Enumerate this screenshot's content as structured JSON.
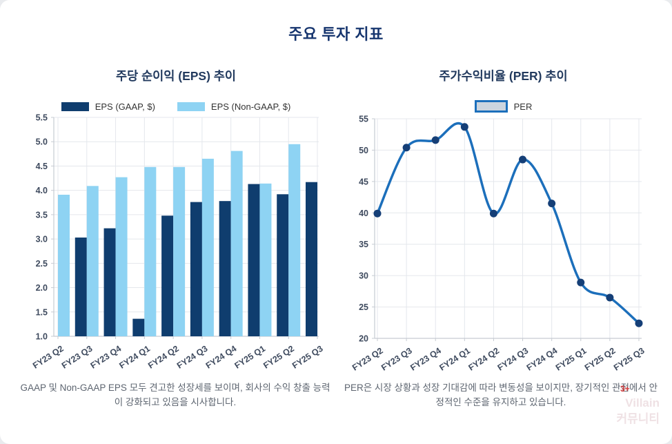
{
  "page": {
    "title": "주요 투자 지표"
  },
  "style": {
    "page_bg": "#e9ebee",
    "card_bg": "#ffffff",
    "title_color": "#16356e",
    "chart_title_color": "#223a5e",
    "tick_label_color": "#3e4a5e",
    "grid_color": "#e4e7ec",
    "axis_color": "#c6cbd2",
    "caption_color": "#5d6570"
  },
  "watermark": {
    "line1": "Villain",
    "line2": "커뮤니티",
    "badge": "3+"
  },
  "chart_data": [
    {
      "type": "bar",
      "title": "주당 순이익 (EPS) 추이",
      "xlabel": "",
      "ylabel": "",
      "categories": [
        "FY23 Q2",
        "FY23 Q3",
        "FY23 Q4",
        "FY24 Q1",
        "FY24 Q2",
        "FY24 Q3",
        "FY24 Q4",
        "FY25 Q1",
        "FY25 Q2",
        "FY25 Q3"
      ],
      "series": [
        {
          "name": "EPS (GAAP, $)",
          "color": "#0f3d6e",
          "values": [
            null,
            3.03,
            3.22,
            1.36,
            3.48,
            3.76,
            3.78,
            4.13,
            3.92,
            4.17
          ]
        },
        {
          "name": "EPS (Non-GAAP, $)",
          "color": "#8ed3f3",
          "values": [
            3.91,
            4.09,
            4.27,
            4.48,
            4.48,
            4.65,
            4.81,
            4.14,
            4.95,
            null
          ]
        }
      ],
      "ylim": [
        1.0,
        5.5
      ],
      "ytick_step": 0.5,
      "ytick_decimals": 1,
      "grid": true,
      "legend_position": "top",
      "caption": "GAAP 및 Non-GAAP EPS 모두 견고한 성장세를 보이며, 회사의 수익 창출 능력이 강화되고 있음을 시사합니다."
    },
    {
      "type": "line",
      "title": "주가수익비율 (PER) 추이",
      "xlabel": "",
      "ylabel": "",
      "categories": [
        "FY23 Q2",
        "FY23 Q3",
        "FY23 Q4",
        "FY24 Q1",
        "FY24 Q2",
        "FY24 Q3",
        "FY24 Q4",
        "FY25 Q1",
        "FY25 Q2",
        "FY25 Q3"
      ],
      "series": [
        {
          "name": "PER",
          "color": "#1c6fbb",
          "marker_color": "#153f77",
          "legend_fill": "#ccd5df",
          "values": [
            39.9,
            50.4,
            51.6,
            53.7,
            39.9,
            48.5,
            41.5,
            28.9,
            26.5,
            22.4
          ]
        }
      ],
      "ylim": [
        20,
        55
      ],
      "ytick_step": 5,
      "ytick_decimals": 0,
      "grid": true,
      "legend_position": "top",
      "caption": "PER은 시장 상황과 성장 기대감에 따라 변동성을 보이지만, 장기적인 관점에서 안정적인 수준을 유지하고 있습니다."
    }
  ]
}
